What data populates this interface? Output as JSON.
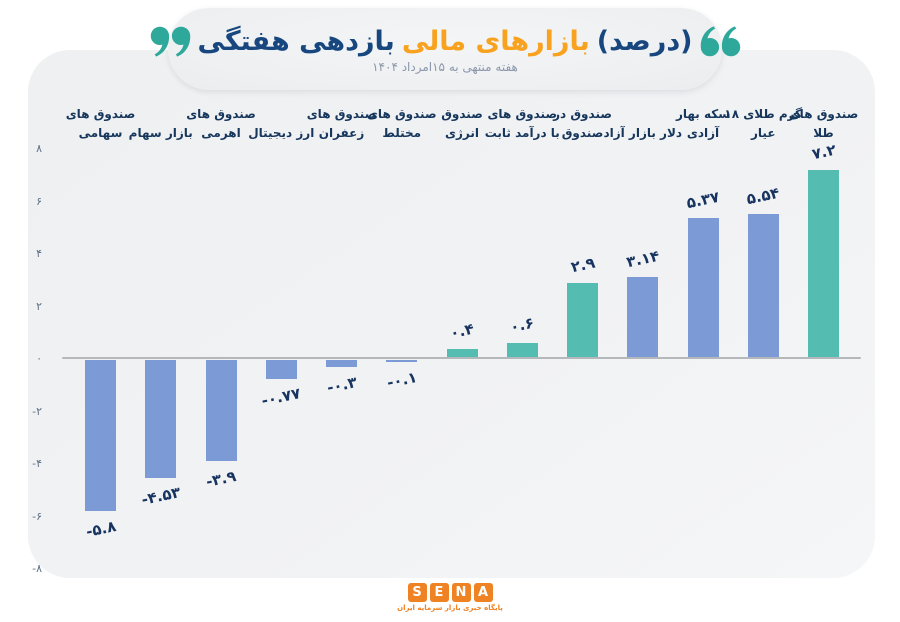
{
  "header": {
    "title_full": "بازدهی هفتگی بازارهای مالی (درصد)",
    "title_part_blue1": "بازدهی هفتگی",
    "title_part_orange": "بازارهای مالی",
    "title_part_blue2": "(درصد)",
    "subtitle": "هفته منتهی به ۱۵امرداد ۱۴۰۴"
  },
  "colors": {
    "title_navy": "#17477e",
    "title_orange": "#f8a21f",
    "quote_teal": "#2ea89a",
    "bar_blue": "#7b9ad6",
    "bar_teal": "#55bcb1",
    "value_label": "#17335f",
    "category_label": "#16365c",
    "tick_label": "#5f7186",
    "axis_line": "#b5b8bb",
    "logo_orange": "#ef8222",
    "card_bg": "#f0f1f3"
  },
  "chart_data": {
    "type": "bar",
    "title": "بازدهی هفتگی بازارهای مالی (درصد)",
    "subtitle": "هفته منتهی به ۱۵امرداد ۱۴۰۴",
    "ylabel": "درصد",
    "ylim": [
      -8,
      8
    ],
    "grid": false,
    "category_labels_position": "top",
    "categories_order": "left-to-right-as-displayed",
    "categories": [
      "صندوق های سهامی",
      "بازار سهام",
      "صندوق های اهرمی",
      "ارز دیجیتال",
      "صندوق های زعفران",
      "صندوق های مختلط",
      "صندوق انرژی",
      "صندوق های با درآمد ثابت",
      "صندوق در صندوق",
      "دلار بازار آزاد",
      "سکه بهار آزادی",
      "گرم طلای ۱۸ عیار",
      "صندوق های طلا"
    ],
    "values": [
      -5.8,
      -4.53,
      -3.9,
      -0.77,
      -0.3,
      -0.1,
      0.4,
      0.6,
      2.9,
      3.14,
      5.37,
      5.54,
      7.2
    ],
    "bars": [
      {
        "label_line1": "صندوق های",
        "label_line2": "سهامی",
        "value": -5.8,
        "value_fa": "-۵.۸",
        "color_key": "bar_blue"
      },
      {
        "label_line1": "",
        "label_line2": "بازار سهام",
        "value": -4.53,
        "value_fa": "-۴.۵۳",
        "color_key": "bar_blue"
      },
      {
        "label_line1": "صندوق های",
        "label_line2": "اهرمی",
        "value": -3.9,
        "value_fa": "-۳.۹",
        "color_key": "bar_blue"
      },
      {
        "label_line1": "",
        "label_line2": "ارز دیجیتال",
        "value": -0.77,
        "value_fa": "-۰.۷۷",
        "color_key": "bar_blue"
      },
      {
        "label_line1": "صندوق های",
        "label_line2": "زعفران",
        "value": -0.3,
        "value_fa": "-۰.۳",
        "color_key": "bar_blue"
      },
      {
        "label_line1": "صندوق های",
        "label_line2": "مختلط",
        "value": -0.1,
        "value_fa": "-۰.۱",
        "color_key": "bar_blue"
      },
      {
        "label_line1": "صندوق",
        "label_line2": "انرژی",
        "value": 0.4,
        "value_fa": "۰.۴",
        "color_key": "bar_teal"
      },
      {
        "label_line1": "صندوق های",
        "label_line2": "با درآمد ثابت",
        "value": 0.6,
        "value_fa": "۰.۶",
        "color_key": "bar_teal"
      },
      {
        "label_line1": "صندوق در",
        "label_line2": "صندوق",
        "value": 2.9,
        "value_fa": "۲.۹",
        "color_key": "bar_teal"
      },
      {
        "label_line1": "",
        "label_line2": "دلار بازار آزاد",
        "value": 3.14,
        "value_fa": "۳.۱۴",
        "color_key": "bar_blue"
      },
      {
        "label_line1": "سکه بهار",
        "label_line2": "آزادی",
        "value": 5.37,
        "value_fa": "۵.۳۷",
        "color_key": "bar_blue"
      },
      {
        "label_line1": "گرم طلای ۱۸",
        "label_line2": "عیار",
        "value": 5.54,
        "value_fa": "۵.۵۴",
        "color_key": "bar_blue"
      },
      {
        "label_line1": "صندوق های",
        "label_line2": "طلا",
        "value": 7.2,
        "value_fa": "۷.۲",
        "color_key": "bar_teal"
      }
    ],
    "y_ticks": [
      {
        "value": 8,
        "label_fa": "۸"
      },
      {
        "value": 6,
        "label_fa": "۶"
      },
      {
        "value": 4,
        "label_fa": "۴"
      },
      {
        "value": 2,
        "label_fa": "۲"
      },
      {
        "value": 0,
        "label_fa": "۰"
      },
      {
        "value": -2,
        "label_fa": "-۲"
      },
      {
        "value": -4,
        "label_fa": "-۴"
      },
      {
        "value": -6,
        "label_fa": "-۶"
      },
      {
        "value": -8,
        "label_fa": "-۸"
      }
    ]
  },
  "logo": {
    "letters": [
      "S",
      "E",
      "N",
      "A"
    ],
    "tagline": "پایگاه خبری بازار سرمایه ایران"
  }
}
